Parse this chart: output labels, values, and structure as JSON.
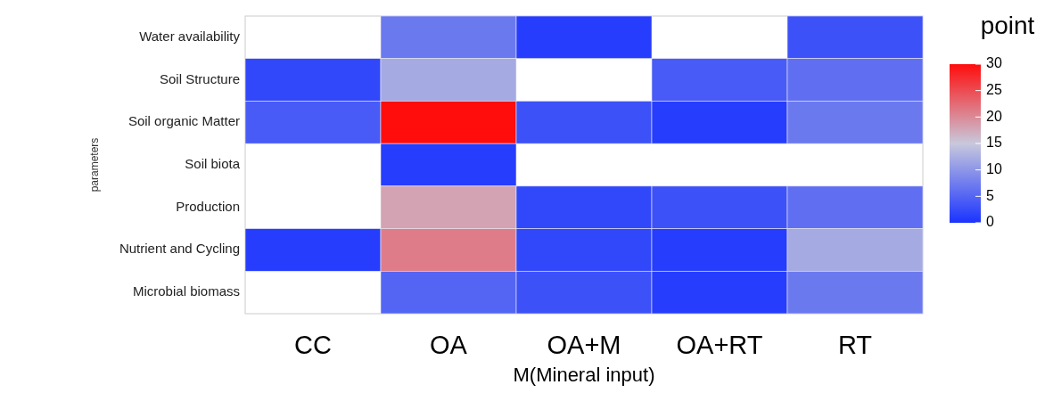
{
  "chart_data": {
    "type": "heatmap",
    "xlabel": "M(Mineral input)",
    "ylabel": "parameters",
    "legend_title": "point",
    "categories": [
      "CC",
      "OA",
      "OA+M",
      "OA+RT",
      "RT"
    ],
    "y_categories": [
      "Water availability",
      "Soil Structure",
      "Soil organic Matter",
      "Soil biota",
      "Production",
      "Nutrient and Cycling",
      "Microbial biomass"
    ],
    "cells": [
      [
        null,
        7,
        1,
        null,
        3
      ],
      [
        2,
        12,
        null,
        4,
        6
      ],
      [
        4,
        30,
        3,
        1,
        7
      ],
      [
        null,
        1,
        null,
        null,
        null
      ],
      [
        null,
        18,
        2,
        3,
        6
      ],
      [
        1,
        21,
        2,
        1,
        12
      ],
      [
        null,
        5,
        3,
        1,
        7
      ]
    ],
    "clim": [
      0,
      30
    ],
    "cticks": [
      0,
      5,
      10,
      15,
      20,
      25,
      30
    ]
  }
}
